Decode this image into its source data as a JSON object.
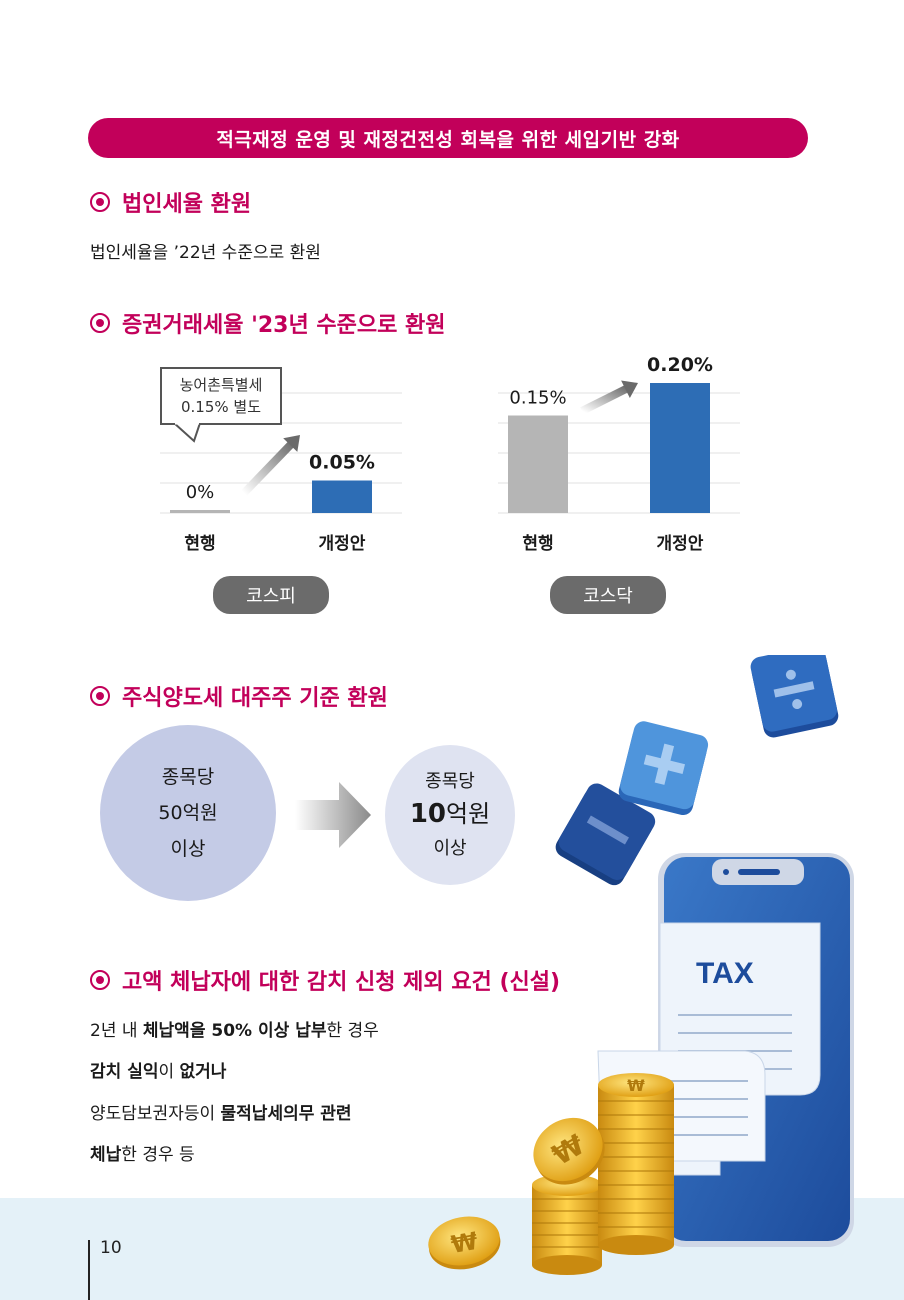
{
  "banner": "적극재정 운영 및 재정건전성 회복을 위한 세입기반 강화",
  "sections": {
    "corp": {
      "title": "법인세율 환원",
      "body": "법인세율을 ’22년 수준으로 환원"
    },
    "sec_tax": {
      "title": "증권거래세율 '23년 수준으로 환원",
      "callout_line1": "농어촌특별세",
      "callout_line2": "0.15% 별도"
    },
    "stock": {
      "title": "주식양도세 대주주 기준 환원",
      "before": [
        "종목당",
        "50억원",
        "이상"
      ],
      "after": [
        "종목당",
        "10",
        "억원",
        "이상"
      ]
    },
    "arrears": {
      "title": "고액 체납자에 대한 감치 신청 제외 요건 (신설)",
      "line1": {
        "a": "2년 내 ",
        "b": "체납액을 50% 이상 납부",
        "c": "한 경우"
      },
      "line2": {
        "a": "감치 실익",
        "b": "이 ",
        "c": "없거나"
      },
      "line3": {
        "a": "양도담보권자등이 ",
        "b": "물적납세의무 관련"
      },
      "line4": {
        "a": "체납",
        "b": "한 경우 등"
      }
    }
  },
  "illustration": {
    "tax_label": "TAX",
    "icons": [
      "division-icon",
      "plus-icon",
      "minus-icon",
      "won-coin-icon",
      "smartphone-icon",
      "receipt-icon"
    ]
  },
  "page_number": "10",
  "colors": {
    "accent": "#c2005a",
    "bar_new": "#2d6db5",
    "bar_current": "#b5b5b5",
    "pill": "#6b6b6b"
  },
  "chart_data": [
    {
      "type": "bar",
      "market": "코스피",
      "categories": [
        "현행",
        "개정안"
      ],
      "values": [
        0,
        0.05
      ],
      "labels": [
        "0%",
        "0.05%"
      ],
      "colors": [
        "#b5b5b5",
        "#2d6db5"
      ],
      "ylim": [
        0,
        0.2
      ],
      "grid": true
    },
    {
      "type": "bar",
      "market": "코스닥",
      "categories": [
        "현행",
        "개정안"
      ],
      "values": [
        0.15,
        0.2
      ],
      "labels": [
        "0.15%",
        "0.20%"
      ],
      "colors": [
        "#b5b5b5",
        "#2d6db5"
      ],
      "ylim": [
        0,
        0.2
      ],
      "grid": true
    }
  ]
}
